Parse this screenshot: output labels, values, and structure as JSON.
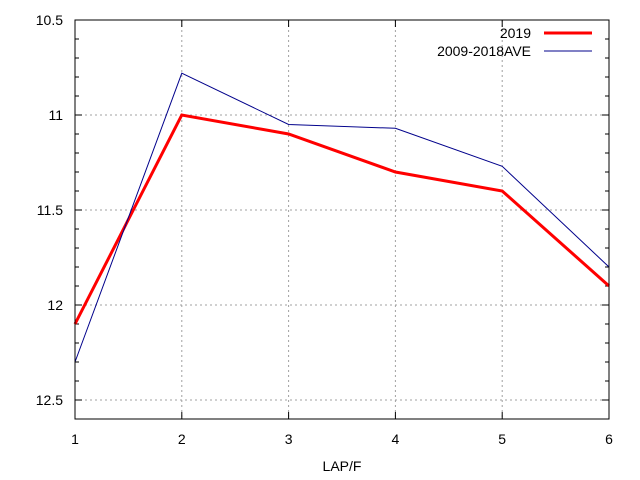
{
  "chart_data": {
    "type": "line",
    "xlabel": "LAP/F",
    "ylabel": "",
    "x": [
      1,
      2,
      3,
      4,
      5,
      6
    ],
    "xlim": [
      1,
      6
    ],
    "ylim": [
      10.5,
      12.6
    ],
    "y_reversed": true,
    "xticks": [
      "1",
      "2",
      "3",
      "4",
      "5",
      "6"
    ],
    "yticks": [
      {
        "value": 10.5,
        "label": "10.5"
      },
      {
        "value": 11,
        "label": "11"
      },
      {
        "value": 11.5,
        "label": "11.5"
      },
      {
        "value": 12,
        "label": "12"
      },
      {
        "value": 12.5,
        "label": "12.5"
      }
    ],
    "grid": true,
    "legend_position": "top-right",
    "series": [
      {
        "name": "2019",
        "color": "#ff0000",
        "values": [
          12.1,
          11.0,
          11.1,
          11.3,
          11.4,
          11.9
        ]
      },
      {
        "name": "2009-2018AVE",
        "color": "#00008b",
        "values": [
          12.3,
          10.78,
          11.05,
          11.07,
          11.27,
          11.8
        ]
      }
    ]
  }
}
